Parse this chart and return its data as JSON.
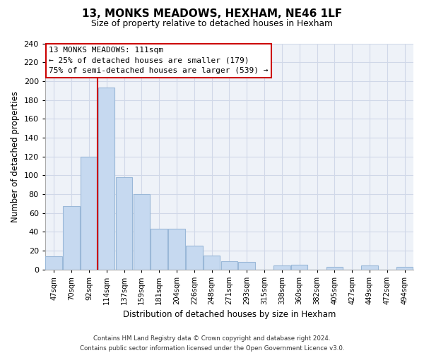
{
  "title": "13, MONKS MEADOWS, HEXHAM, NE46 1LF",
  "subtitle": "Size of property relative to detached houses in Hexham",
  "xlabel": "Distribution of detached houses by size in Hexham",
  "ylabel": "Number of detached properties",
  "bar_labels": [
    "47sqm",
    "70sqm",
    "92sqm",
    "114sqm",
    "137sqm",
    "159sqm",
    "181sqm",
    "204sqm",
    "226sqm",
    "248sqm",
    "271sqm",
    "293sqm",
    "315sqm",
    "338sqm",
    "360sqm",
    "382sqm",
    "405sqm",
    "427sqm",
    "449sqm",
    "472sqm",
    "494sqm"
  ],
  "bar_values": [
    14,
    67,
    120,
    193,
    98,
    80,
    43,
    43,
    25,
    15,
    9,
    8,
    0,
    4,
    5,
    0,
    3,
    0,
    4,
    0,
    3
  ],
  "bar_color": "#c6d9f0",
  "bar_edge_color": "#9ab8d8",
  "ylim": [
    0,
    240
  ],
  "yticks": [
    0,
    20,
    40,
    60,
    80,
    100,
    120,
    140,
    160,
    180,
    200,
    220,
    240
  ],
  "vline_index": 3,
  "vline_color": "#cc0000",
  "annotation_title": "13 MONKS MEADOWS: 111sqm",
  "annotation_line1": "← 25% of detached houses are smaller (179)",
  "annotation_line2": "75% of semi-detached houses are larger (539) →",
  "annotation_box_color": "#ffffff",
  "annotation_box_edge": "#cc0000",
  "footer_line1": "Contains HM Land Registry data © Crown copyright and database right 2024.",
  "footer_line2": "Contains public sector information licensed under the Open Government Licence v3.0.",
  "background_color": "#ffffff",
  "plot_bg_color": "#eef2f8",
  "grid_color": "#d0d8e8"
}
